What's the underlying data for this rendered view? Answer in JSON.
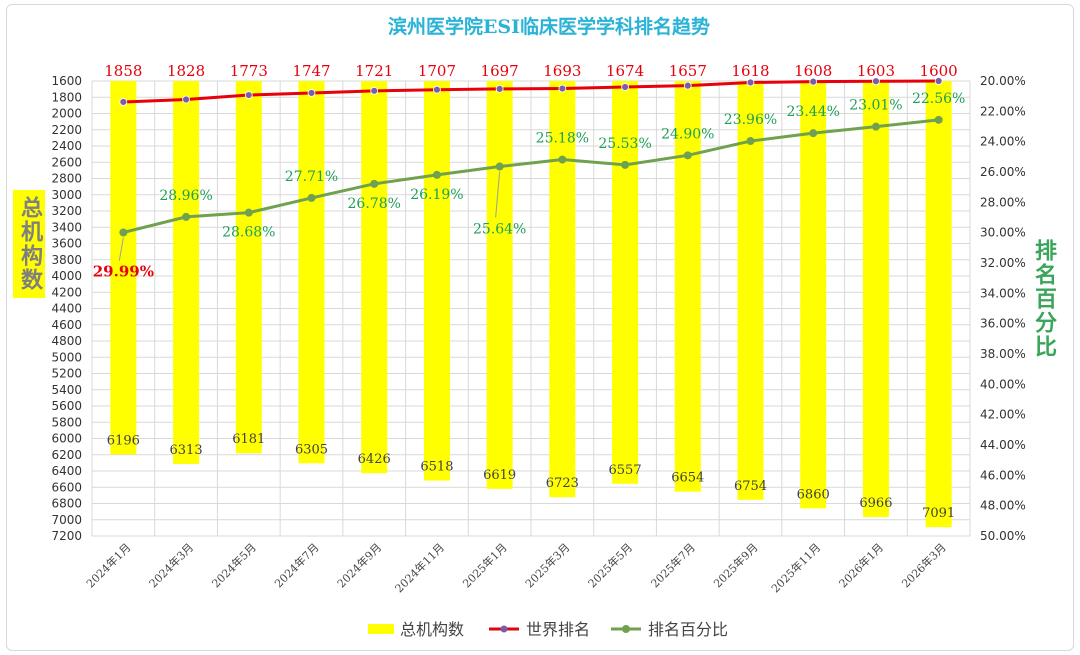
{
  "colors": {
    "bar": "#ffff00",
    "rank_line": "#e8000b",
    "rank_marker": "#7a5ca8",
    "pct_line": "#70a14f",
    "title": "#2ab3d6",
    "grid": "#d9d9d9",
    "pct_label": "#1e9e58",
    "left_axis_label": "#7f7f7f"
  },
  "chart_data": {
    "type": "bar+line",
    "title": "滨州医学院ESI临床医学学科排名趋势",
    "categories": [
      "2024年1月",
      "2024年3月",
      "2024年5月",
      "2024年7月",
      "2024年9月",
      "2024年11月",
      "2025年1月",
      "2025年3月",
      "2025年5月",
      "2025年7月",
      "2025年9月",
      "2025年11月",
      "2026年1月",
      "2026年3月"
    ],
    "left_axis": {
      "label": "总机构数",
      "min": 1600,
      "max": 7200,
      "step": 200,
      "reversed": true,
      "ticks": [
        1600,
        1800,
        2000,
        2200,
        2400,
        2600,
        2800,
        3000,
        3200,
        3400,
        3600,
        3800,
        4000,
        4200,
        4400,
        4600,
        4800,
        5000,
        5200,
        5400,
        5600,
        5800,
        6000,
        6200,
        6400,
        6600,
        6800,
        7000,
        7200
      ]
    },
    "right_axis": {
      "label": "排名百分比",
      "min": 20,
      "max": 50,
      "step": 2,
      "reversed": true,
      "tick_labels": [
        "20.00%",
        "22.00%",
        "24.00%",
        "26.00%",
        "28.00%",
        "30.00%",
        "32.00%",
        "34.00%",
        "36.00%",
        "38.00%",
        "40.00%",
        "42.00%",
        "44.00%",
        "46.00%",
        "48.00%",
        "50.00%"
      ]
    },
    "grid": true,
    "legend_position": "bottom",
    "series": [
      {
        "name": "总机构数",
        "kind": "bar",
        "axis": "left",
        "values": [
          6196,
          6313,
          6181,
          6305,
          6426,
          6518,
          6619,
          6723,
          6557,
          6654,
          6754,
          6860,
          6966,
          7091
        ],
        "labels": [
          "6196",
          "6313",
          "6181",
          "6305",
          "6426",
          "6518",
          "6619",
          "6723",
          "6557",
          "6654",
          "6754",
          "6860",
          "6966",
          "7091"
        ]
      },
      {
        "name": "世界排名",
        "kind": "line",
        "axis": "left",
        "values": [
          1858,
          1828,
          1773,
          1747,
          1721,
          1707,
          1697,
          1693,
          1674,
          1657,
          1618,
          1608,
          1603,
          1600
        ],
        "labels": [
          "1858",
          "1828",
          "1773",
          "1747",
          "1721",
          "1707",
          "1697",
          "1693",
          "1674",
          "1657",
          "1618",
          "1608",
          "1603",
          "1600"
        ]
      },
      {
        "name": "排名百分比",
        "kind": "line",
        "axis": "right",
        "values": [
          29.99,
          28.96,
          28.68,
          27.71,
          26.78,
          26.19,
          25.64,
          25.18,
          25.53,
          24.9,
          23.96,
          23.44,
          23.01,
          22.56
        ],
        "labels": [
          "29.99%",
          "28.96%",
          "28.68%",
          "27.71%",
          "26.78%",
          "26.19%",
          "25.64%",
          "25.18%",
          "25.53%",
          "24.90%",
          "23.96%",
          "23.44%",
          "23.01%",
          "22.56%"
        ]
      }
    ]
  }
}
